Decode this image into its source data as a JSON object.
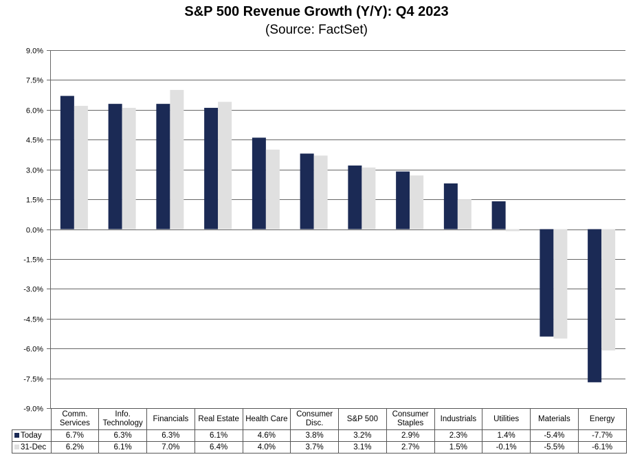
{
  "chart_data": {
    "type": "bar",
    "title": "S&P 500 Revenue Growth (Y/Y): Q4 2023",
    "subtitle": "(Source: FactSet)",
    "xlabel": "",
    "ylabel": "",
    "ylim": [
      -9.0,
      9.0
    ],
    "yticks": [
      9.0,
      7.5,
      6.0,
      4.5,
      3.0,
      1.5,
      0.0,
      -1.5,
      -3.0,
      -4.5,
      -6.0,
      -7.5,
      -9.0
    ],
    "ytick_labels": [
      "9.0%",
      "7.5%",
      "6.0%",
      "4.5%",
      "3.0%",
      "1.5%",
      "0.0%",
      "-1.5%",
      "-3.0%",
      "-4.5%",
      "-6.0%",
      "-7.5%",
      "-9.0%"
    ],
    "grid": true,
    "legend_placement": "data-table-left",
    "categories": [
      [
        "Comm.",
        "Services"
      ],
      [
        "Info.",
        "Technology"
      ],
      [
        "Financials"
      ],
      [
        "Real Estate"
      ],
      [
        "Health Care"
      ],
      [
        "Consumer",
        "Disc."
      ],
      [
        "S&P 500"
      ],
      [
        "Consumer",
        "Staples"
      ],
      [
        "Industrials"
      ],
      [
        "Utilities"
      ],
      [
        "Materials"
      ],
      [
        "Energy"
      ]
    ],
    "series": [
      {
        "name": "Today",
        "color": "#1b2a55",
        "values": [
          6.7,
          6.3,
          6.3,
          6.1,
          4.6,
          3.8,
          3.2,
          2.9,
          2.3,
          1.4,
          -5.4,
          -7.7
        ],
        "labels": [
          "6.7%",
          "6.3%",
          "6.3%",
          "6.1%",
          "4.6%",
          "3.8%",
          "3.2%",
          "2.9%",
          "2.3%",
          "1.4%",
          "-5.4%",
          "-7.7%"
        ]
      },
      {
        "name": "31-Dec",
        "color": "#e0e0e0",
        "values": [
          6.2,
          6.1,
          7.0,
          6.4,
          4.0,
          3.7,
          3.1,
          2.7,
          1.5,
          -0.1,
          -5.5,
          -6.1
        ],
        "labels": [
          "6.2%",
          "6.1%",
          "7.0%",
          "6.4%",
          "4.0%",
          "3.7%",
          "3.1%",
          "2.7%",
          "1.5%",
          "-0.1%",
          "-5.5%",
          "-6.1%"
        ]
      }
    ]
  }
}
